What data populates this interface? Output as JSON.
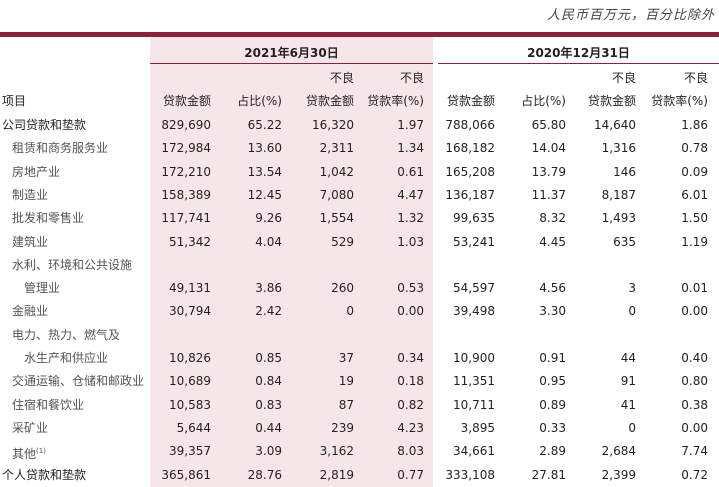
{
  "unit_note": "人民币百万元，百分比除外",
  "periods": [
    "2021年6月30日",
    "2020年12月31日"
  ],
  "header": {
    "item": "项目",
    "line1": [
      "",
      "",
      "不良",
      "不良",
      "",
      "",
      "不良",
      "不良"
    ],
    "line2": [
      "贷款金额",
      "占比(%)",
      "贷款金额",
      "贷款率(%)",
      "贷款金额",
      "占比(%)",
      "贷款金额",
      "贷款率(%)"
    ]
  },
  "rows": [
    {
      "label": "公司贷款和垫款",
      "level": 0,
      "values": [
        "829,690",
        "65.22",
        "16,320",
        "1.97",
        "788,066",
        "65.80",
        "14,640",
        "1.86"
      ]
    },
    {
      "label": "租赁和商务服务业",
      "level": 1,
      "values": [
        "172,984",
        "13.60",
        "2,311",
        "1.34",
        "168,182",
        "14.04",
        "1,316",
        "0.78"
      ]
    },
    {
      "label": "房地产业",
      "level": 1,
      "values": [
        "172,210",
        "13.54",
        "1,042",
        "0.61",
        "165,208",
        "13.79",
        "146",
        "0.09"
      ]
    },
    {
      "label": "制造业",
      "level": 1,
      "values": [
        "158,389",
        "12.45",
        "7,080",
        "4.47",
        "136,187",
        "11.37",
        "8,187",
        "6.01"
      ]
    },
    {
      "label": "批发和零售业",
      "level": 1,
      "values": [
        "117,741",
        "9.26",
        "1,554",
        "1.32",
        "99,635",
        "8.32",
        "1,493",
        "1.50"
      ]
    },
    {
      "label": "建筑业",
      "level": 1,
      "values": [
        "51,342",
        "4.04",
        "529",
        "1.03",
        "53,241",
        "4.45",
        "635",
        "1.19"
      ]
    },
    {
      "label": "水利、环境和公共设施",
      "level": 1,
      "values": [
        "",
        "",
        "",
        "",
        "",
        "",
        "",
        ""
      ]
    },
    {
      "label": "管理业",
      "level": 2,
      "values": [
        "49,131",
        "3.86",
        "260",
        "0.53",
        "54,597",
        "4.56",
        "3",
        "0.01"
      ]
    },
    {
      "label": "金融业",
      "level": 1,
      "values": [
        "30,794",
        "2.42",
        "0",
        "0.00",
        "39,498",
        "3.30",
        "0",
        "0.00"
      ]
    },
    {
      "label": "电力、热力、燃气及",
      "level": 1,
      "values": [
        "",
        "",
        "",
        "",
        "",
        "",
        "",
        ""
      ]
    },
    {
      "label": "水生产和供应业",
      "level": 2,
      "values": [
        "10,826",
        "0.85",
        "37",
        "0.34",
        "10,900",
        "0.91",
        "44",
        "0.40"
      ]
    },
    {
      "label": "交通运输、仓储和邮政业",
      "level": 1,
      "values": [
        "10,689",
        "0.84",
        "19",
        "0.18",
        "11,351",
        "0.95",
        "91",
        "0.80"
      ]
    },
    {
      "label": "住宿和餐饮业",
      "level": 1,
      "values": [
        "10,583",
        "0.83",
        "87",
        "0.82",
        "10,711",
        "0.89",
        "41",
        "0.38"
      ]
    },
    {
      "label": "采矿业",
      "level": 1,
      "values": [
        "5,644",
        "0.44",
        "239",
        "4.23",
        "3,895",
        "0.33",
        "0",
        "0.00"
      ]
    },
    {
      "label": "其他",
      "footnote": "(1)",
      "level": 1,
      "values": [
        "39,357",
        "3.09",
        "3,162",
        "8.03",
        "34,661",
        "2.89",
        "2,684",
        "7.74"
      ]
    },
    {
      "label": "个人贷款和垫款",
      "level": 0,
      "values": [
        "365,861",
        "28.76",
        "2,819",
        "0.77",
        "333,108",
        "27.81",
        "2,399",
        "0.72"
      ]
    }
  ],
  "colors": {
    "accent": "#8e1f3d",
    "highlight": "#f7e6e8"
  }
}
